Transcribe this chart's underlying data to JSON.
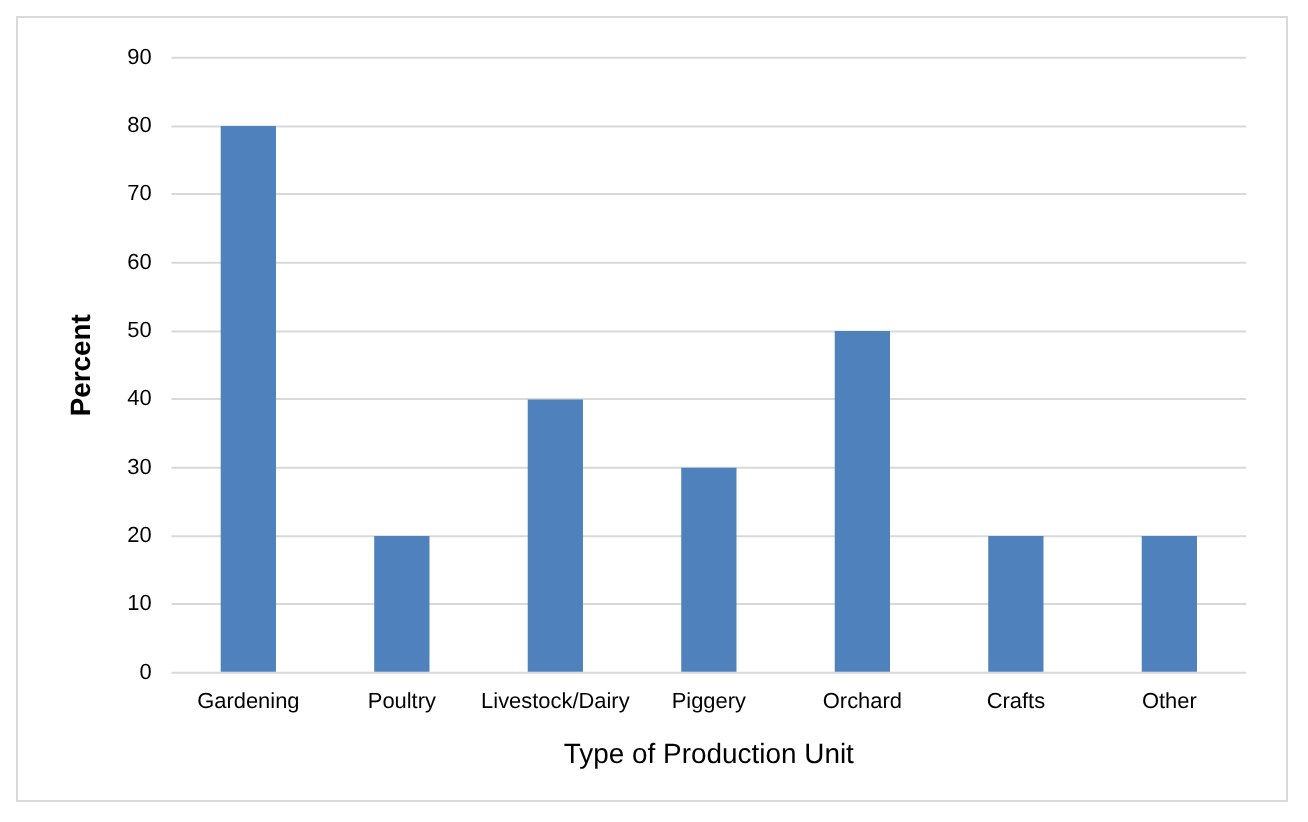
{
  "chart_data": {
    "type": "bar",
    "xlabel": "Type of Production Unit",
    "ylabel": "Percent",
    "categories": [
      "Gardening",
      "Poultry",
      "Livestock/Dairy",
      "Piggery",
      "Orchard",
      "Crafts",
      "Other"
    ],
    "values": [
      80,
      20,
      40,
      30,
      50,
      20,
      20
    ],
    "color": "#4f81bd",
    "ylim": [
      0,
      90
    ],
    "yticks": [
      0,
      10,
      20,
      30,
      40,
      50,
      60,
      70,
      80,
      90
    ],
    "grid": "y",
    "legend": false
  }
}
